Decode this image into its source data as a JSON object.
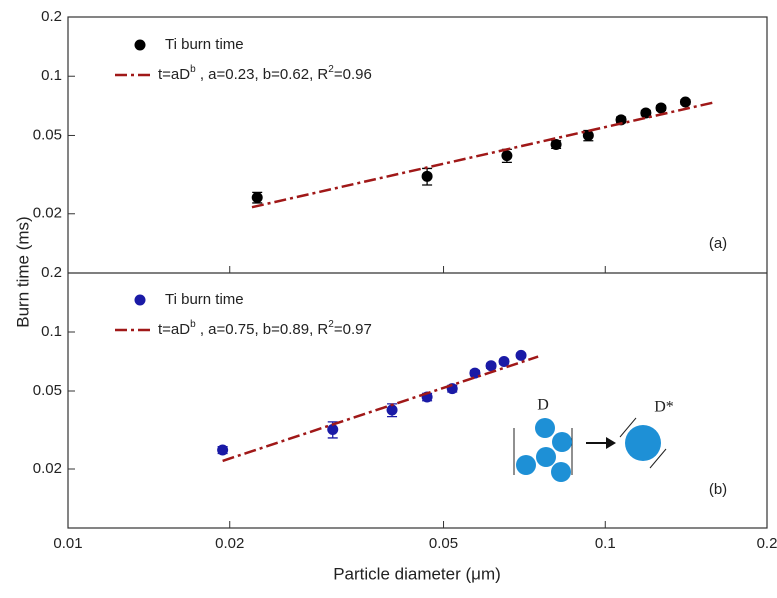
{
  "chart_data": [
    {
      "type": "scatter",
      "panel_label": "(a)",
      "y_label": "Burn time (ms)",
      "log_x": true,
      "log_y": true,
      "xlim": [
        0.01,
        0.2
      ],
      "xticks": [
        0.01,
        0.02,
        0.05,
        0.1,
        0.2
      ],
      "show_xtick_labels": false,
      "ylim": [
        0.01,
        0.2
      ],
      "yticks": [
        0.02,
        0.05,
        0.1,
        0.2
      ],
      "series": [
        {
          "name": "Ti burn time",
          "color": "#000000",
          "x": [
            0.0225,
            0.0466,
            0.0656,
            0.081,
            0.093,
            0.107,
            0.119,
            0.127,
            0.141
          ],
          "values": [
            0.0242,
            0.031,
            0.0395,
            0.045,
            0.05,
            0.06,
            0.065,
            0.069,
            0.074
          ],
          "errors": [
            0.0015,
            0.003,
            0.003,
            0.002,
            0.003,
            0.002,
            0.002,
            0.002,
            0.002
          ]
        },
        {
          "name_parts": [
            {
              "text": "t=aD"
            },
            {
              "text": "b",
              "sup": true
            },
            {
              "text": " , a=0.23, b=0.62, R"
            },
            {
              "text": "2",
              "sup": true
            },
            {
              "text": "=0.96"
            }
          ],
          "color": "#a01818",
          "style": "dash-dot",
          "x": [
            0.022,
            0.16
          ],
          "values": [
            0.0216,
            0.0738
          ]
        }
      ]
    },
    {
      "type": "scatter",
      "panel_label": "(b)",
      "x_label": "Particle diameter (μm)",
      "log_x": true,
      "log_y": true,
      "xlim": [
        0.01,
        0.2
      ],
      "xticks": [
        0.01,
        0.02,
        0.05,
        0.1,
        0.2
      ],
      "show_xtick_labels": true,
      "ylim": [
        0.01,
        0.2
      ],
      "yticks": [
        0.02,
        0.05,
        0.1,
        0.2
      ],
      "inset_labels": [
        "D",
        "D*"
      ],
      "series": [
        {
          "name": "Ti burn time",
          "color": "#1a1aa6",
          "x": [
            0.0194,
            0.0311,
            0.0401,
            0.0466,
            0.0519,
            0.0572,
            0.0613,
            0.0648,
            0.0697
          ],
          "values": [
            0.025,
            0.0318,
            0.04,
            0.0466,
            0.0514,
            0.0617,
            0.0673,
            0.0707,
            0.076
          ],
          "errors": [
            0.001,
            0.003,
            0.003,
            0.002,
            0.002,
            0.002,
            0.002,
            0.002,
            0.002
          ]
        },
        {
          "name_parts": [
            {
              "text": "t=aD"
            },
            {
              "text": "b",
              "sup": true
            },
            {
              "text": " , a=0.75, b=0.89, R"
            },
            {
              "text": "2",
              "sup": true
            },
            {
              "text": "=0.97"
            }
          ],
          "color": "#a01818",
          "style": "dash-dot",
          "x": [
            0.0194,
            0.075
          ],
          "values": [
            0.022,
            0.0749
          ]
        }
      ]
    }
  ]
}
